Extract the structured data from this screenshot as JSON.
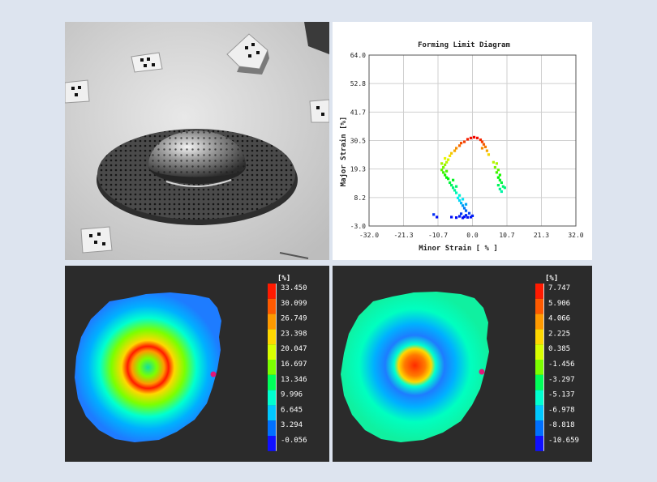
{
  "chart_data": [
    {
      "type": "image",
      "title": "",
      "description_name": "stamped-dome-photo"
    },
    {
      "type": "scatter",
      "title": "Forming Limit Diagram",
      "xlabel": "Minor Strain [ % ]",
      "ylabel": "Major Strain [%]",
      "xlim": [
        -32.0,
        32.0
      ],
      "ylim": [
        -3.0,
        64.0
      ],
      "x_ticks": [
        "-32.0",
        "-21.3",
        "-10.7",
        "0.0",
        "10.7",
        "21.3",
        "32.0"
      ],
      "y_ticks": [
        "-3.0",
        "8.2",
        "19.3",
        "30.5",
        "41.7",
        "52.8",
        "64.0"
      ],
      "grid": true,
      "series": [
        {
          "name": "points",
          "points": [
            [
              -6.5,
              0.5
            ],
            [
              -5,
              0.3
            ],
            [
              -4,
              0.8
            ],
            [
              -3,
              0.2
            ],
            [
              -2.5,
              0.6
            ],
            [
              -1.5,
              0.4
            ],
            [
              -2,
              1.2
            ],
            [
              -1,
              2
            ],
            [
              -0.5,
              0.5
            ],
            [
              0,
              1
            ],
            [
              -12,
              1.5
            ],
            [
              -11,
              0.5
            ],
            [
              -3.5,
              1.8
            ],
            [
              -2,
              3
            ],
            [
              -2.5,
              4
            ],
            [
              -3,
              5
            ],
            [
              -3.5,
              6
            ],
            [
              -4,
              7
            ],
            [
              -4.5,
              8
            ],
            [
              -3,
              7.5
            ],
            [
              -2,
              5.5
            ],
            [
              -4,
              9
            ],
            [
              -5,
              10
            ],
            [
              -5.5,
              11
            ],
            [
              -6,
              12
            ],
            [
              -6.5,
              13
            ],
            [
              -7,
              14
            ],
            [
              -5,
              12.5
            ],
            [
              -6,
              15
            ],
            [
              -7.5,
              15.5
            ],
            [
              -8,
              16
            ],
            [
              -8.5,
              17
            ],
            [
              -9,
              18
            ],
            [
              -8,
              18.5
            ],
            [
              -9.5,
              19
            ],
            [
              -9,
              20
            ],
            [
              -8.5,
              21
            ],
            [
              -9.5,
              21.5
            ],
            [
              -8,
              22
            ],
            [
              -7.5,
              23
            ],
            [
              -8.5,
              23.5
            ],
            [
              -7,
              24.5
            ],
            [
              -6.5,
              25.5
            ],
            [
              -5.5,
              26.5
            ],
            [
              -5,
              27.5
            ],
            [
              -4,
              28.5
            ],
            [
              -3.5,
              29.5
            ],
            [
              -2.5,
              30
            ],
            [
              -1.5,
              31
            ],
            [
              -0.5,
              31.5
            ],
            [
              0.5,
              31.8
            ],
            [
              1.5,
              31.5
            ],
            [
              2.5,
              30.8
            ],
            [
              3,
              30
            ],
            [
              3.5,
              29
            ],
            [
              4,
              28
            ],
            [
              3,
              27.5
            ],
            [
              4.5,
              26.5
            ],
            [
              5,
              25
            ],
            [
              6.5,
              22
            ],
            [
              7.5,
              21.5
            ],
            [
              7,
              20
            ],
            [
              8,
              19
            ],
            [
              7.5,
              18
            ],
            [
              8.5,
              17
            ],
            [
              8,
              16
            ],
            [
              8.5,
              15
            ],
            [
              9,
              14
            ],
            [
              8,
              13
            ],
            [
              9.5,
              12.5
            ],
            [
              8.5,
              11.5
            ],
            [
              9,
              10.5
            ],
            [
              10,
              12
            ]
          ]
        }
      ]
    },
    {
      "type": "heatmap",
      "title": "",
      "unit_label": "[%]",
      "legend_values": [
        "33.450",
        "30.099",
        "26.749",
        "23.398",
        "20.047",
        "16.697",
        "13.346",
        "9.996",
        "6.645",
        "3.294",
        "-0.056"
      ],
      "legend_colors": [
        "#ff1a00",
        "#ff5a00",
        "#ff9a00",
        "#ffd800",
        "#d8ff00",
        "#7cff00",
        "#00ff5a",
        "#00ffd0",
        "#00c8ff",
        "#0070ff",
        "#1010ff"
      ]
    },
    {
      "type": "heatmap",
      "title": "",
      "unit_label": "[%]",
      "legend_values": [
        "7.747",
        "5.906",
        "4.066",
        "2.225",
        "0.385",
        "-1.456",
        "-3.297",
        "-5.137",
        "-6.978",
        "-8.818",
        "-10.659"
      ],
      "legend_colors": [
        "#ff1a00",
        "#ff5a00",
        "#ff9a00",
        "#ffd800",
        "#d8ff00",
        "#7cff00",
        "#00ff5a",
        "#00ffd0",
        "#00c8ff",
        "#0070ff",
        "#1010ff"
      ]
    }
  ]
}
